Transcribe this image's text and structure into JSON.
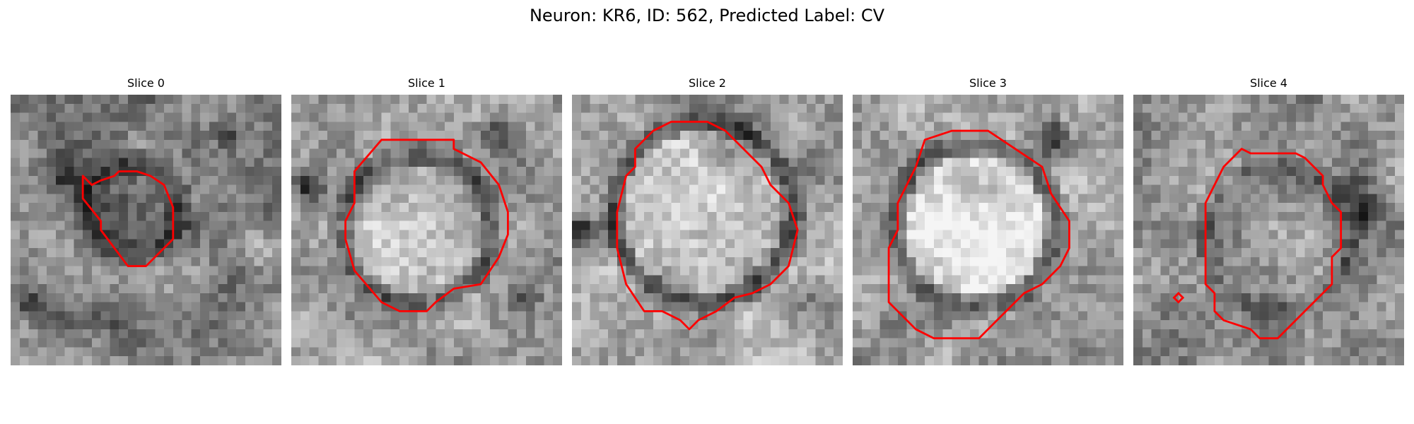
{
  "figure": {
    "title": "Neuron: KR6, ID: 562, Predicted Label: CV"
  },
  "colors": {
    "contour": "#ff0000",
    "background": "#ffffff"
  },
  "panels": [
    {
      "title": "Slice 0"
    },
    {
      "title": "Slice 1"
    },
    {
      "title": "Slice 2"
    },
    {
      "title": "Slice 3"
    },
    {
      "title": "Slice 4"
    }
  ]
}
